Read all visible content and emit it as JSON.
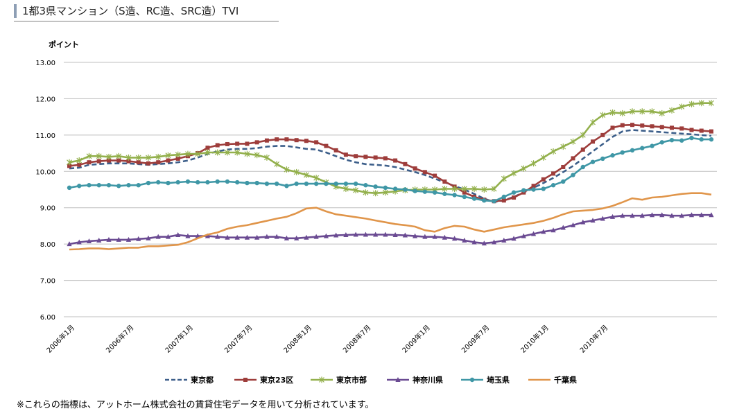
{
  "page": {
    "title": "1都3県マンション（S造、RC造、SRC造）TVI",
    "note": "※これらの指標は、アットホーム株式会社の賃貸住宅データを用いて分析されています。"
  },
  "chart_data": {
    "type": "line",
    "ylabel": "ポイント",
    "ylim": [
      6.0,
      13.0
    ],
    "yticks": [
      "6.00",
      "7.00",
      "8.00",
      "9.00",
      "10.00",
      "11.00",
      "12.00",
      "13.00"
    ],
    "grid": true,
    "legend": "bottom",
    "x_labels": [
      "2006年1月",
      "2006年7月",
      "2007年1月",
      "2007年7月",
      "2008年1月",
      "2008年7月",
      "2009年1月",
      "2009年7月",
      "2010年1月",
      "2010年7月"
    ],
    "series": [
      {
        "name": "東京都",
        "color": "#3d5f8a",
        "dash": true,
        "marker": "none",
        "values": [
          10.08,
          10.1,
          10.18,
          10.2,
          10.22,
          10.22,
          10.22,
          10.2,
          10.18,
          10.2,
          10.22,
          10.25,
          10.3,
          10.38,
          10.48,
          10.55,
          10.6,
          10.62,
          10.62,
          10.64,
          10.68,
          10.7,
          10.7,
          10.66,
          10.62,
          10.6,
          10.52,
          10.42,
          10.32,
          10.25,
          10.2,
          10.18,
          10.16,
          10.12,
          10.05,
          9.98,
          9.9,
          9.8,
          9.7,
          9.6,
          9.5,
          9.38,
          9.25,
          9.16,
          9.2,
          9.3,
          9.42,
          9.55,
          9.68,
          9.82,
          9.98,
          10.15,
          10.35,
          10.55,
          10.75,
          10.95,
          11.1,
          11.14,
          11.12,
          11.1,
          11.08,
          11.06,
          11.04,
          11.02,
          11.0,
          10.98
        ]
      },
      {
        "name": "東京23区",
        "color": "#9e3d3b",
        "dash": false,
        "marker": "square",
        "values": [
          10.15,
          10.18,
          10.25,
          10.28,
          10.3,
          10.3,
          10.28,
          10.25,
          10.22,
          10.25,
          10.3,
          10.35,
          10.42,
          10.5,
          10.65,
          10.72,
          10.75,
          10.76,
          10.76,
          10.8,
          10.85,
          10.88,
          10.88,
          10.86,
          10.84,
          10.8,
          10.7,
          10.58,
          10.46,
          10.42,
          10.4,
          10.38,
          10.36,
          10.3,
          10.2,
          10.08,
          9.98,
          9.88,
          9.72,
          9.58,
          9.42,
          9.3,
          9.22,
          9.18,
          9.2,
          9.28,
          9.42,
          9.6,
          9.78,
          9.94,
          10.12,
          10.36,
          10.6,
          10.82,
          11.0,
          11.2,
          11.27,
          11.28,
          11.26,
          11.24,
          11.22,
          11.2,
          11.18,
          11.14,
          11.12,
          11.1
        ]
      },
      {
        "name": "東京市部",
        "color": "#93b04c",
        "dash": false,
        "marker": "star",
        "values": [
          10.25,
          10.3,
          10.42,
          10.42,
          10.4,
          10.42,
          10.38,
          10.38,
          10.38,
          10.4,
          10.44,
          10.46,
          10.48,
          10.48,
          10.52,
          10.52,
          10.52,
          10.52,
          10.48,
          10.45,
          10.38,
          10.2,
          10.05,
          9.98,
          9.9,
          9.82,
          9.7,
          9.58,
          9.52,
          9.48,
          9.42,
          9.4,
          9.42,
          9.45,
          9.48,
          9.5,
          9.5,
          9.5,
          9.52,
          9.52,
          9.52,
          9.52,
          9.5,
          9.52,
          9.8,
          9.95,
          10.08,
          10.22,
          10.38,
          10.55,
          10.68,
          10.82,
          11.0,
          11.35,
          11.55,
          11.62,
          11.6,
          11.65,
          11.65,
          11.65,
          11.6,
          11.68,
          11.78,
          11.85,
          11.88,
          11.88
        ]
      },
      {
        "name": "神奈川県",
        "color": "#6a4a92",
        "dash": false,
        "marker": "triangle",
        "values": [
          8.0,
          8.05,
          8.08,
          8.1,
          8.12,
          8.12,
          8.12,
          8.14,
          8.16,
          8.2,
          8.2,
          8.25,
          8.22,
          8.22,
          8.22,
          8.2,
          8.18,
          8.18,
          8.18,
          8.18,
          8.2,
          8.2,
          8.16,
          8.16,
          8.18,
          8.2,
          8.22,
          8.24,
          8.25,
          8.26,
          8.26,
          8.26,
          8.26,
          8.25,
          8.24,
          8.22,
          8.2,
          8.2,
          8.18,
          8.15,
          8.1,
          8.05,
          8.02,
          8.05,
          8.1,
          8.15,
          8.22,
          8.28,
          8.34,
          8.38,
          8.45,
          8.52,
          8.6,
          8.65,
          8.7,
          8.75,
          8.78,
          8.78,
          8.78,
          8.8,
          8.8,
          8.78,
          8.78,
          8.8,
          8.8,
          8.8
        ]
      },
      {
        "name": "埼玉県",
        "color": "#3f97a6",
        "dash": false,
        "marker": "circle",
        "values": [
          9.55,
          9.6,
          9.62,
          9.62,
          9.62,
          9.6,
          9.62,
          9.62,
          9.68,
          9.7,
          9.68,
          9.7,
          9.72,
          9.7,
          9.7,
          9.72,
          9.72,
          9.7,
          9.68,
          9.68,
          9.66,
          9.66,
          9.6,
          9.66,
          9.66,
          9.66,
          9.66,
          9.66,
          9.66,
          9.66,
          9.62,
          9.58,
          9.55,
          9.52,
          9.5,
          9.46,
          9.44,
          9.42,
          9.38,
          9.35,
          9.3,
          9.25,
          9.2,
          9.18,
          9.3,
          9.42,
          9.48,
          9.5,
          9.52,
          9.62,
          9.72,
          9.9,
          10.12,
          10.26,
          10.35,
          10.44,
          10.52,
          10.58,
          10.64,
          10.7,
          10.8,
          10.86,
          10.85,
          10.92,
          10.88,
          10.88
        ]
      },
      {
        "name": "千葉県",
        "color": "#e0954a",
        "dash": false,
        "marker": "none",
        "values": [
          7.85,
          7.86,
          7.88,
          7.88,
          7.86,
          7.88,
          7.9,
          7.9,
          7.94,
          7.94,
          7.96,
          7.98,
          8.05,
          8.16,
          8.26,
          8.32,
          8.42,
          8.48,
          8.52,
          8.58,
          8.64,
          8.7,
          8.75,
          8.85,
          8.98,
          9.0,
          8.9,
          8.82,
          8.78,
          8.74,
          8.7,
          8.65,
          8.6,
          8.55,
          8.52,
          8.48,
          8.38,
          8.34,
          8.44,
          8.5,
          8.48,
          8.4,
          8.34,
          8.4,
          8.46,
          8.5,
          8.54,
          8.58,
          8.64,
          8.72,
          8.82,
          8.9,
          8.92,
          8.94,
          8.98,
          9.05,
          9.15,
          9.26,
          9.22,
          9.28,
          9.3,
          9.34,
          9.38,
          9.4,
          9.4,
          9.36
        ]
      }
    ]
  }
}
